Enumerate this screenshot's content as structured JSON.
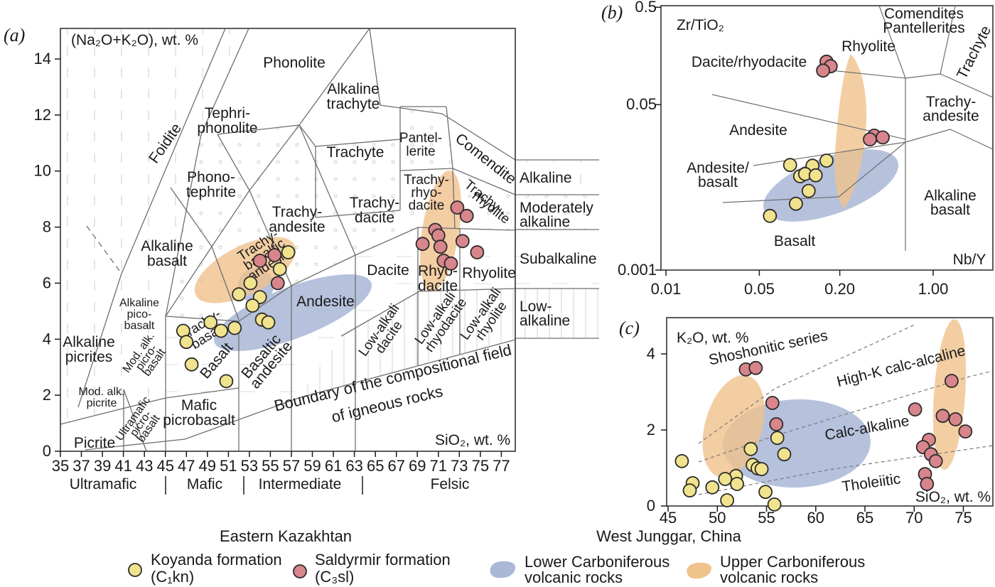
{
  "colors": {
    "koyanda_fill": "#f1e38d",
    "saldyrmir_fill": "#d8858c",
    "point_stroke": "#2b2b2b",
    "lower_carboniferous": "#aab7d7",
    "upper_carboniferous": "#f0c28c",
    "line": "#6f6f6f",
    "frame": "#4a4a4a",
    "text": "#1a1a1a"
  },
  "panel_a": {
    "tag": "(a)",
    "title": "(Na₂O+K₂O), wt. %",
    "x_axis_label": "SiO₂, wt. %",
    "x_ticks": [
      "35",
      "37",
      "39",
      "41",
      "43",
      "45",
      "47",
      "49",
      "51",
      "53",
      "55",
      "57",
      "59",
      "61",
      "63",
      "65",
      "67",
      "69",
      "71",
      "73",
      "75",
      "77"
    ],
    "y_ticks": [
      "0",
      "2",
      "4",
      "6",
      "8",
      "10",
      "12",
      "14"
    ],
    "rock_classes": [
      "Ultramafic",
      "Mafic",
      "Intermediate",
      "Felsic"
    ],
    "right_bands": {
      "alkaline": "Alkaline",
      "moderately_1": "Moderately",
      "moderately_2": "alkaline",
      "subalkaline": "Subalkaline",
      "low_1": "Low-",
      "low_2": "alkaline"
    },
    "fields": {
      "phonolite": "Phonolite",
      "foidite": "Foidite",
      "tephri_1": "Tephri-",
      "tephri_2": "phonolite",
      "alkaline_trachyte_1": "Alkaline",
      "alkaline_trachyte_2": "trachyte",
      "phono_tephrite_1": "Phono-",
      "phono_tephrite_2": "tephrite",
      "trachyte": "Trachyte",
      "pantellerite_1": "Pantel-",
      "pantellerite_2": "lerite",
      "comendite": "Comendite",
      "trachy_andesite_1": "Trachy-",
      "trachy_andesite_2": "andesite",
      "trachy_dacite_1": "Trachy-",
      "trachy_dacite_2": "dacite",
      "trachy_rhyo_dacite_1": "Trachy-",
      "trachy_rhyo_dacite_2": "rhyo-",
      "trachy_rhyo_dacite_3": "dacite",
      "trachy_rhyolite_1": "Trachy-",
      "trachy_rhyolite_2": "rhyolite",
      "alkaline_basalt_1": "Alkaline",
      "alkaline_basalt_2": "basalt",
      "tba_1": "Trachy-",
      "tba_2": "basaltic",
      "tba_3": "andesite",
      "trachy_basalt_1": "Trachy-",
      "trachy_basalt_2": "basalt",
      "andesite": "Andesite",
      "basalt": "Basalt",
      "basaltic_andesite_1": "Basaltic",
      "basaltic_andesite_2": "andesite",
      "dacite": "Dacite",
      "rhyo_dacite_1": "Rhyo-",
      "rhyo_dacite_2": "dacite",
      "rhyolite": "Rhyolite",
      "low_alkali_dacite_1": "Low-alkali",
      "low_alkali_dacite_2": "dacite",
      "low_alkali_rhyodacite_1": "Low-alkali",
      "low_alkali_rhyodacite_2": "rhyodacite",
      "low_alkali_rhyolite_1": "Low-alkali",
      "low_alkali_rhyolite_2": "rhyolite",
      "alkaline_picrites_1": "Alkaline",
      "alkaline_picrites_2": "picrites",
      "alkaline_picobasalt_1": "Alkaline",
      "alkaline_picobasalt_2": "pico-",
      "alkaline_picobasalt_3": "basalt",
      "mod_alk_picobasalt_1": "Mod. alk.",
      "mod_alk_picobasalt_2": "picro-",
      "mod_alk_picobasalt_3": "basalt",
      "mod_alk_picrite_1": "Mod. alk.",
      "mod_alk_picrite_2": "picrite",
      "ultramafic_picrobasalt_1": "Ultramafic",
      "ultramafic_picrobasalt_2": "picro-",
      "ultramafic_picrobasalt_3": "basalt",
      "mafic_picrobasalt_1": "Mafic",
      "mafic_picrobasalt_2": "picrobasalt",
      "picrite": "Picrite",
      "boundary_1": "Boundary of the compositional field",
      "boundary_2": "of igneous rocks"
    }
  },
  "panel_b": {
    "tag": "(b)",
    "title": "Zr/TiO₂",
    "x_axis_label": "Nb/Y",
    "x_ticks": [
      "0.01",
      "0.05",
      "0.20",
      "1.00"
    ],
    "y_ticks": [
      "0.5",
      "0.05",
      "0.001"
    ],
    "fields": {
      "dacite_rhyodacite": "Dacite/rhyodacite",
      "rhyolite": "Rhyolite",
      "comendites": "Comendites",
      "pantellerites": "Pantellerites",
      "trachyte": "Trachyte",
      "trachy_andesite_1": "Trachy-",
      "trachy_andesite_2": "andesite",
      "andesite": "Andesite",
      "andesite_basalt_1": "Andesite/",
      "andesite_basalt_2": "basalt",
      "basalt": "Basalt",
      "alkaline_basalt_1": "Alkaline",
      "alkaline_basalt_2": "basalt"
    }
  },
  "panel_c": {
    "tag": "(c)",
    "title": "K₂O, wt. %",
    "x_axis_label": "SiO₂, wt. %",
    "x_ticks": [
      "45",
      "50",
      "55",
      "60",
      "65",
      "70",
      "75"
    ],
    "y_ticks": [
      "0",
      "2",
      "4"
    ],
    "fields": {
      "shoshonitic": "Shoshonitic series",
      "high_k": "High-K calc-alcaline",
      "calc_alkaline": "Calc-alkaline",
      "tholeiitic": "Tholeiitic"
    }
  },
  "legend": {
    "group1": "Eastern Kazakhtan",
    "koyanda_1": "Koyanda formation",
    "koyanda_2": "(C₁kn)",
    "saldyrmir_1": "Saldyrmir formation",
    "saldyrmir_2": "(C₃sl)",
    "group2": "West Junggar, China",
    "lower_1": "Lower Carboniferous",
    "lower_2": "volcanic rocks",
    "upper_1": "Upper Carboniferous",
    "upper_2": "volcanic rocks"
  },
  "chart_data": [
    {
      "type": "scatter",
      "panel": "a",
      "title": "TAS classification diagram",
      "xlabel": "SiO₂, wt. %",
      "ylabel": "(Na₂O+K₂O), wt. %",
      "xlim": [
        35,
        78.3
      ],
      "ylim": [
        0,
        15.1
      ],
      "grid": false,
      "series": [
        {
          "key": "koyanda",
          "name": "Koyanda formation (C₁kn)",
          "values": [
            [
              56.7,
              7.1
            ],
            [
              55.9,
              6.5
            ],
            [
              53.1,
              6.0
            ],
            [
              52.0,
              5.6
            ],
            [
              54.0,
              5.5
            ],
            [
              53.3,
              5.2
            ],
            [
              54.2,
              4.7
            ],
            [
              54.8,
              4.6
            ],
            [
              49.3,
              4.6
            ],
            [
              50.3,
              4.3
            ],
            [
              51.6,
              4.4
            ],
            [
              46.7,
              4.3
            ],
            [
              47.0,
              3.9
            ],
            [
              47.5,
              3.1
            ],
            [
              50.8,
              2.5
            ]
          ]
        },
        {
          "key": "saldyrmir",
          "name": "Saldyrmir formation (C₃sl)",
          "values": [
            [
              72.8,
              8.7
            ],
            [
              73.7,
              8.4
            ],
            [
              70.7,
              7.9
            ],
            [
              71.0,
              7.7
            ],
            [
              73.3,
              7.5
            ],
            [
              69.5,
              7.4
            ],
            [
              71.2,
              7.3
            ],
            [
              74.7,
              7.1
            ],
            [
              71.5,
              6.8
            ],
            [
              72.2,
              6.7
            ],
            [
              55.4,
              7.0
            ],
            [
              54.0,
              6.8
            ],
            [
              55.7,
              6.0
            ]
          ]
        }
      ]
    },
    {
      "type": "scatter",
      "panel": "b",
      "title": "Zr/TiO₂ vs Nb/Y discrimination diagram",
      "xlabel": "Nb/Y",
      "ylabel": "Zr/TiO₂",
      "xscale": "log",
      "yscale": "log",
      "xlim": [
        0.01,
        2.8
      ],
      "ylim": [
        0.001,
        0.5
      ],
      "grid": false,
      "series": [
        {
          "key": "koyanda",
          "name": "Koyanda formation (C₁kn)",
          "values": [
            [
              0.085,
              0.012
            ],
            [
              0.159,
              0.0133
            ],
            [
              0.125,
              0.0118
            ],
            [
              0.101,
              0.0092
            ],
            [
              0.11,
              0.0097
            ],
            [
              0.132,
              0.0094
            ],
            [
              0.117,
              0.0065
            ],
            [
              0.094,
              0.0048
            ],
            [
              0.06,
              0.0036
            ]
          ]
        },
        {
          "key": "saldyrmir",
          "name": "Saldyrmir formation (C₃sl)",
          "values": [
            [
              0.159,
              0.138
            ],
            [
              0.171,
              0.124
            ],
            [
              0.15,
              0.112
            ],
            [
              0.362,
              0.024
            ],
            [
              0.419,
              0.023
            ],
            [
              0.336,
              0.022
            ]
          ]
        }
      ]
    },
    {
      "type": "scatter",
      "panel": "c",
      "title": "K₂O vs SiO₂ series diagram",
      "xlabel": "SiO₂, wt. %",
      "ylabel": "K₂O, wt. %",
      "xlim": [
        44.4,
        78
      ],
      "ylim": [
        0,
        4.95
      ],
      "grid": false,
      "series": [
        {
          "key": "koyanda",
          "name": "Koyanda formation (C₁kn)",
          "values": [
            [
              46.4,
              1.18
            ],
            [
              53.4,
              1.5
            ],
            [
              56.1,
              1.79
            ],
            [
              56.8,
              1.36
            ],
            [
              53.6,
              1.08
            ],
            [
              54.1,
              0.99
            ],
            [
              54.5,
              0.97
            ],
            [
              51.9,
              0.79
            ],
            [
              50.8,
              0.71
            ],
            [
              52.0,
              0.58
            ],
            [
              47.5,
              0.6
            ],
            [
              47.2,
              0.41
            ],
            [
              49.5,
              0.49
            ],
            [
              54.9,
              0.37
            ],
            [
              51.0,
              0.15
            ],
            [
              55.8,
              0.04
            ]
          ]
        },
        {
          "key": "saldyrmir",
          "name": "Saldyrmir formation (C₃sl)",
          "values": [
            [
              52.9,
              3.59
            ],
            [
              53.9,
              3.63
            ],
            [
              55.6,
              2.71
            ],
            [
              56.0,
              2.15
            ],
            [
              73.8,
              3.29
            ],
            [
              70.1,
              2.54
            ],
            [
              72.9,
              2.37
            ],
            [
              74.2,
              2.28
            ],
            [
              75.2,
              1.96
            ],
            [
              71.5,
              1.74
            ],
            [
              70.9,
              1.55
            ],
            [
              71.7,
              1.36
            ],
            [
              72.2,
              1.18
            ],
            [
              71.1,
              0.84
            ],
            [
              71.3,
              0.58
            ]
          ]
        }
      ]
    }
  ]
}
